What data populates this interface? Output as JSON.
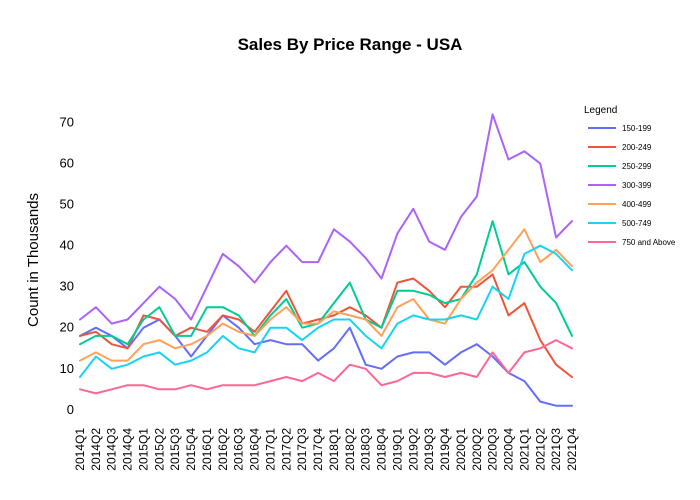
{
  "chart_data": {
    "type": "line",
    "title": "Sales By Price Range - USA",
    "xlabel": "",
    "ylabel": "Count in Thousands",
    "ylim": [
      -2,
      76
    ],
    "yticks": [
      0,
      10,
      20,
      30,
      40,
      50,
      60,
      70
    ],
    "grid": false,
    "legend_title": "Legend",
    "legend_position": "right",
    "categories": [
      "2014Q1",
      "2014Q2",
      "2014Q3",
      "2014Q4",
      "2015Q1",
      "2015Q2",
      "2015Q3",
      "2015Q4",
      "2016Q1",
      "2016Q2",
      "2016Q3",
      "2016Q4",
      "2017Q1",
      "2017Q2",
      "2017Q3",
      "2017Q4",
      "2018Q1",
      "2018Q2",
      "2018Q3",
      "2018Q4",
      "2019Q1",
      "2019Q2",
      "2019Q3",
      "2019Q4",
      "2020Q1",
      "2020Q2",
      "2020Q3",
      "2020Q4",
      "2021Q1",
      "2021Q2",
      "2021Q3",
      "2021Q4"
    ],
    "series": [
      {
        "name": "150-199",
        "color": "#636efa",
        "values": [
          18,
          20,
          18,
          15,
          20,
          22,
          18,
          13,
          18,
          23,
          20,
          16,
          17,
          16,
          16,
          12,
          15,
          20,
          11,
          10,
          13,
          14,
          14,
          11,
          14,
          16,
          13,
          9,
          7,
          2,
          1,
          1
        ]
      },
      {
        "name": "200-249",
        "color": "#ef553b",
        "values": [
          18,
          19,
          16,
          15,
          23,
          22,
          18,
          20,
          19,
          23,
          22,
          19,
          24,
          29,
          21,
          22,
          23,
          25,
          23,
          20,
          31,
          32,
          29,
          25,
          30,
          30,
          33,
          23,
          26,
          17,
          11,
          8
        ]
      },
      {
        "name": "250-299",
        "color": "#00cc96",
        "values": [
          16,
          18,
          18,
          16,
          22,
          25,
          18,
          18,
          25,
          25,
          23,
          18,
          23,
          27,
          20,
          21,
          26,
          31,
          22,
          20,
          29,
          29,
          28,
          26,
          27,
          33,
          46,
          33,
          36,
          30,
          26,
          18
        ]
      },
      {
        "name": "300-399",
        "color": "#ab63fa",
        "values": [
          22,
          25,
          21,
          22,
          26,
          30,
          27,
          22,
          30,
          38,
          35,
          31,
          36,
          40,
          36,
          36,
          44,
          41,
          37,
          32,
          43,
          49,
          41,
          39,
          47,
          52,
          72,
          61,
          63,
          60,
          42,
          46
        ]
      },
      {
        "name": "400-499",
        "color": "#ffa15a",
        "values": [
          12,
          14,
          12,
          12,
          16,
          17,
          15,
          16,
          18,
          21,
          19,
          18,
          22,
          25,
          21,
          21,
          24,
          23,
          22,
          18,
          25,
          27,
          22,
          21,
          27,
          31,
          34,
          39,
          44,
          36,
          39,
          35
        ]
      },
      {
        "name": "500-749",
        "color": "#19d3f3",
        "values": [
          8,
          13,
          10,
          11,
          13,
          14,
          11,
          12,
          14,
          18,
          15,
          14,
          20,
          20,
          17,
          20,
          22,
          22,
          18,
          15,
          21,
          23,
          22,
          22,
          23,
          22,
          30,
          27,
          38,
          40,
          38,
          34
        ]
      },
      {
        "name": "750 and Above",
        "color": "#ff6692",
        "values": [
          5,
          4,
          5,
          6,
          6,
          5,
          5,
          6,
          5,
          6,
          6,
          6,
          7,
          8,
          7,
          9,
          7,
          11,
          10,
          6,
          7,
          9,
          9,
          8,
          9,
          8,
          14,
          9,
          14,
          15,
          17,
          15
        ]
      }
    ]
  }
}
